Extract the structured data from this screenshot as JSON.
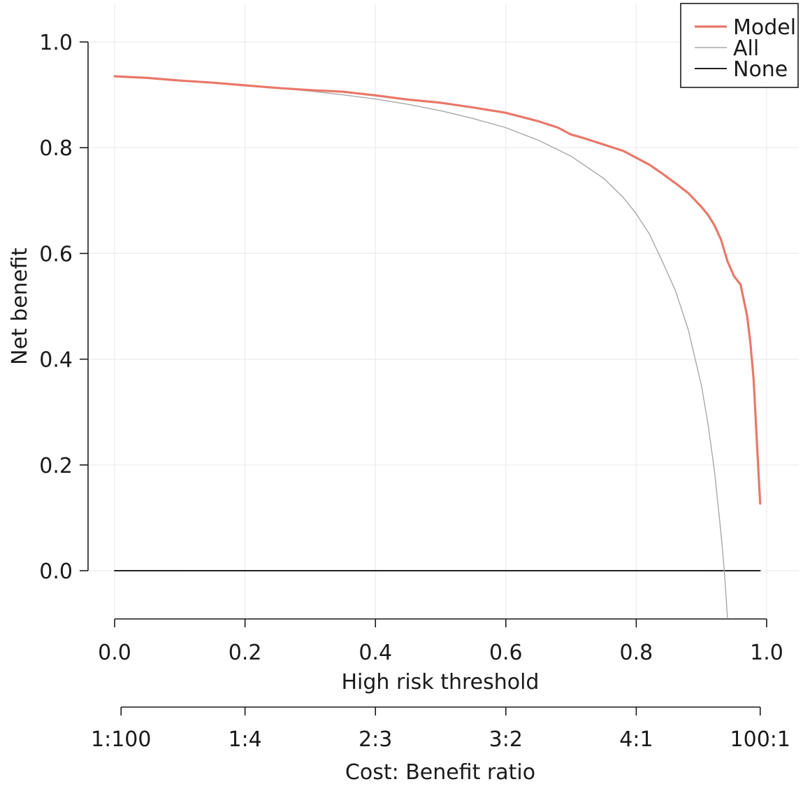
{
  "chart_data": {
    "type": "line",
    "title": "",
    "xlabel": "High risk threshold",
    "ylabel": "Net benefit",
    "xlim": [
      0,
      1
    ],
    "ylim": [
      -0.09,
      1.0
    ],
    "x_ticks": [
      0.0,
      0.2,
      0.4,
      0.6,
      0.8,
      1.0
    ],
    "x_tick_labels": [
      "0.0",
      "0.2",
      "0.4",
      "0.6",
      "0.8",
      "1.0"
    ],
    "y_ticks": [
      0.0,
      0.2,
      0.4,
      0.6,
      0.8,
      1.0
    ],
    "y_tick_labels": [
      "0.0",
      "0.2",
      "0.4",
      "0.6",
      "0.8",
      "1.0"
    ],
    "secondary_x_axis": {
      "label": "Cost: Benefit ratio",
      "tick_labels": [
        "1:100",
        "1:4",
        "2:3",
        "3:2",
        "4:1",
        "100:1"
      ],
      "tick_thresholds": [
        0.0099,
        0.2,
        0.4,
        0.6,
        0.8,
        0.9901
      ]
    },
    "grid": true,
    "legend_position": "top-right",
    "series": [
      {
        "name": "Model",
        "color": "#e8786a",
        "points": [
          [
            0.0,
            0.935
          ],
          [
            0.05,
            0.932
          ],
          [
            0.1,
            0.927
          ],
          [
            0.15,
            0.923
          ],
          [
            0.2,
            0.918
          ],
          [
            0.25,
            0.913
          ],
          [
            0.3,
            0.909
          ],
          [
            0.35,
            0.906
          ],
          [
            0.4,
            0.899
          ],
          [
            0.45,
            0.891
          ],
          [
            0.5,
            0.885
          ],
          [
            0.55,
            0.876
          ],
          [
            0.6,
            0.866
          ],
          [
            0.65,
            0.85
          ],
          [
            0.68,
            0.838
          ],
          [
            0.7,
            0.825
          ],
          [
            0.72,
            0.818
          ],
          [
            0.75,
            0.806
          ],
          [
            0.78,
            0.794
          ],
          [
            0.8,
            0.781
          ],
          [
            0.82,
            0.768
          ],
          [
            0.84,
            0.751
          ],
          [
            0.86,
            0.733
          ],
          [
            0.88,
            0.714
          ],
          [
            0.9,
            0.688
          ],
          [
            0.91,
            0.673
          ],
          [
            0.92,
            0.653
          ],
          [
            0.93,
            0.626
          ],
          [
            0.94,
            0.585
          ],
          [
            0.95,
            0.557
          ],
          [
            0.96,
            0.541
          ],
          [
            0.97,
            0.482
          ],
          [
            0.975,
            0.431
          ],
          [
            0.98,
            0.363
          ],
          [
            0.985,
            0.244
          ],
          [
            0.99,
            0.127
          ]
        ]
      },
      {
        "name": "All",
        "color": "#a8a8a8",
        "points": [
          [
            0.0,
            0.935
          ],
          [
            0.05,
            0.932
          ],
          [
            0.1,
            0.928
          ],
          [
            0.15,
            0.924
          ],
          [
            0.2,
            0.919
          ],
          [
            0.25,
            0.913
          ],
          [
            0.3,
            0.907
          ],
          [
            0.35,
            0.9
          ],
          [
            0.4,
            0.892
          ],
          [
            0.45,
            0.882
          ],
          [
            0.5,
            0.87
          ],
          [
            0.55,
            0.855
          ],
          [
            0.6,
            0.838
          ],
          [
            0.65,
            0.814
          ],
          [
            0.7,
            0.784
          ],
          [
            0.75,
            0.742
          ],
          [
            0.78,
            0.706
          ],
          [
            0.8,
            0.675
          ],
          [
            0.82,
            0.637
          ],
          [
            0.84,
            0.585
          ],
          [
            0.86,
            0.53
          ],
          [
            0.88,
            0.455
          ],
          [
            0.9,
            0.35
          ],
          [
            0.91,
            0.278
          ],
          [
            0.92,
            0.188
          ],
          [
            0.93,
            0.07
          ],
          [
            0.935,
            0.0
          ],
          [
            0.94,
            -0.09
          ]
        ]
      },
      {
        "name": "None",
        "color": "#000000",
        "points": [
          [
            0.0,
            0.0
          ],
          [
            0.99,
            0.0
          ]
        ]
      }
    ]
  }
}
